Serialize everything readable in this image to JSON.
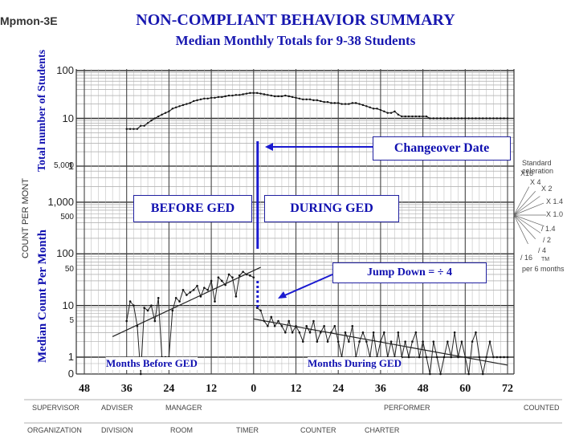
{
  "header": {
    "corner_text": "Mpmon-3E",
    "title": "NON-COMPLIANT BEHAVIOR SUMMARY",
    "subtitle": "Median Monthly Totals for 9-38 Students"
  },
  "labels": {
    "y_top": "Total number of Students",
    "y_bottom": "Median Count  Per Month",
    "y_printed": "COUNT PER MONT",
    "changeover": "Changeover Date",
    "before": "BEFORE GED",
    "during": "DURING GED",
    "jump": "Jump Down = ÷ 4",
    "months_before": "Months Before GED",
    "months_during": "Months During GED"
  },
  "celeration_fan": {
    "heading": "Standard celeration",
    "labels": [
      "X16",
      "X 4",
      "X 2",
      "X 1.4",
      "X 1.0",
      "/ 1.4",
      "/ 2",
      "/ 4",
      "/ 16"
    ],
    "footer": "per 6 months",
    "tm": "TM"
  },
  "form_fields": {
    "row1": [
      "SUPERVISOR",
      "ADVISER",
      "MANAGER",
      "PERFORMER",
      "COUNTED"
    ],
    "row2": [
      "ORGANIZATION",
      "DIVISION",
      "ROOM",
      "TIMER",
      "COUNTER",
      "CHARTER"
    ]
  },
  "chart_data": {
    "type": "line",
    "scale": "log",
    "x_tick_labels": [
      "48",
      "36",
      "24",
      "12",
      "0",
      "12",
      "24",
      "36",
      "48",
      "60",
      "72"
    ],
    "y_tick_labels_top": [
      "100",
      "10",
      "1"
    ],
    "y_tick_labels_bottom": [
      "5,000",
      "1,000",
      "500",
      "100",
      "50",
      "10",
      "5",
      "1",
      "0"
    ],
    "series": [
      {
        "x": [
          -36,
          -35,
          -34,
          -33,
          -32,
          -31,
          -30,
          -29,
          -28,
          -27,
          -26,
          -25,
          -24,
          -23,
          -22,
          -21,
          -20,
          -19,
          -18,
          -17,
          -16,
          -15,
          -14,
          -13,
          -12,
          -11,
          -10,
          -9,
          -8,
          -7,
          -6,
          -5,
          -4,
          -3,
          -2,
          -1,
          0,
          1,
          2,
          3,
          4,
          5,
          6,
          7,
          8,
          9,
          10,
          11,
          12,
          13,
          14,
          15,
          16,
          17,
          18,
          19,
          20,
          21,
          22,
          23,
          24,
          25,
          26,
          27,
          28,
          29,
          30,
          31,
          32,
          33,
          34,
          35,
          36,
          37,
          38,
          39,
          40,
          41,
          42,
          43,
          44,
          45,
          46,
          47,
          48,
          49,
          50,
          51,
          52,
          53,
          54,
          55,
          56,
          57,
          58,
          59,
          60,
          61,
          62,
          63,
          64,
          65,
          66,
          67,
          68,
          69,
          70,
          71,
          72
        ],
        "values": [
          6,
          6,
          6,
          6,
          7,
          7,
          8,
          9,
          10,
          11,
          12,
          13,
          14,
          16,
          17,
          18,
          19,
          20,
          21,
          23,
          24,
          25,
          26,
          26,
          27,
          27,
          28,
          28,
          29,
          30,
          30,
          31,
          31,
          32,
          33,
          34,
          34,
          34,
          33,
          32,
          31,
          30,
          29,
          29,
          29,
          30,
          29,
          28,
          27,
          26,
          25,
          25,
          25,
          24,
          24,
          23,
          22,
          22,
          21,
          21,
          21,
          20,
          20,
          20,
          21,
          21,
          20,
          19,
          18,
          17,
          16,
          16,
          15,
          14,
          13,
          13,
          14,
          12,
          11,
          11,
          11,
          11,
          11,
          11,
          11,
          11,
          10,
          10,
          10,
          10,
          10,
          10,
          10,
          10,
          10,
          10,
          10,
          10,
          10,
          10,
          10,
          10,
          10,
          10,
          10,
          10,
          10,
          10,
          10
        ]
      },
      {
        "x": [
          -36,
          -35,
          -34,
          -33,
          -32,
          -31,
          -30,
          -29,
          -28,
          -27,
          -26,
          -25,
          -24,
          -23,
          -22,
          -21,
          -20,
          -19,
          -18,
          -17,
          -16,
          -15,
          -14,
          -13,
          -12,
          -11,
          -10,
          -9,
          -8,
          -7,
          -6,
          -5,
          -4,
          -3,
          -2,
          -1,
          0
        ],
        "values": [
          5,
          12,
          10,
          4,
          0,
          9,
          8,
          10,
          5,
          14,
          1,
          1,
          1,
          8,
          14,
          12,
          20,
          16,
          18,
          20,
          24,
          15,
          22,
          20,
          30,
          12,
          35,
          30,
          25,
          40,
          35,
          15,
          38,
          45,
          40,
          38,
          35
        ]
      },
      {
        "x": [
          1,
          2,
          3,
          4,
          5,
          6,
          7,
          8,
          9,
          10,
          11,
          12,
          13,
          14,
          15,
          16,
          17,
          18,
          19,
          20,
          21,
          22,
          23,
          24,
          25,
          26,
          27,
          28,
          29,
          30,
          31,
          32,
          33,
          34,
          35,
          36,
          37,
          38,
          39,
          40,
          41,
          42,
          43,
          44,
          45,
          46,
          47,
          48,
          49,
          50,
          51,
          52,
          53,
          54,
          55,
          56,
          57,
          58,
          59,
          60,
          61,
          62,
          63,
          64,
          65,
          66,
          67,
          68,
          69,
          70,
          71,
          72
        ],
        "values": [
          9,
          8,
          5,
          4,
          6,
          4,
          5,
          4,
          3,
          5,
          3,
          4,
          3,
          2,
          4,
          3,
          5,
          2,
          3,
          4,
          2,
          3,
          4,
          2,
          1,
          3,
          2,
          4,
          1,
          2,
          3,
          2,
          1,
          3,
          1,
          2,
          3,
          1,
          2,
          1,
          3,
          1,
          2,
          1,
          2,
          3,
          1,
          2,
          1,
          0,
          2,
          1,
          0,
          1,
          2,
          1,
          3,
          1,
          2,
          1,
          0,
          2,
          3,
          1,
          0,
          1,
          2,
          1,
          1,
          1,
          1,
          1
        ]
      }
    ],
    "trend_lines": [
      {
        "x": [
          -40,
          2
        ],
        "values": [
          2.5,
          55
        ]
      },
      {
        "x": [
          0,
          72
        ],
        "values": [
          5.5,
          0.7
        ]
      }
    ]
  }
}
